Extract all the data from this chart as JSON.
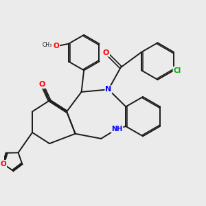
{
  "background_color": "#ebebeb",
  "bond_color": "#1a1a1a",
  "atom_colors": {
    "O": "#ff0000",
    "N": "#0000ff",
    "Cl": "#00aa00",
    "C": "#1a1a1a",
    "H": "#1a1a1a"
  },
  "figsize": [
    3.0,
    3.0
  ],
  "dpi": 100
}
